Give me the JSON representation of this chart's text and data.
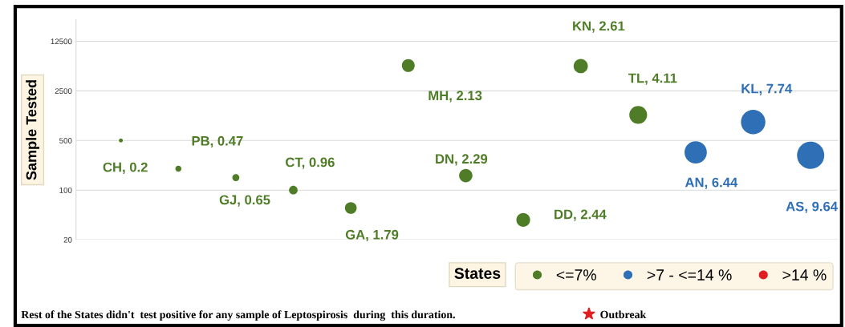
{
  "chart_data": {
    "type": "bubble",
    "xlabel": "States",
    "ylabel": "Sample Tested",
    "categories": [
      null,
      null,
      null,
      null,
      null,
      null,
      null,
      null,
      null,
      null,
      null,
      null,
      null
    ],
    "series": [
      {
        "name": "<=7%",
        "color": "#4f7d27",
        "values": [
          500,
          200,
          150,
          100,
          56,
          5700,
          160,
          38,
          5600,
          1150,
          null,
          null,
          null
        ],
        "sizes": [
          0.021,
          0.049,
          0.067,
          0.1,
          0.186,
          0.221,
          0.238,
          0.253,
          0.271,
          0.426,
          null,
          null,
          null
        ]
      },
      {
        "name": ">7 - <=14 %",
        "color": "#2f6fb6",
        "values": [
          null,
          null,
          null,
          null,
          null,
          null,
          null,
          null,
          null,
          null,
          340,
          910,
          310
        ],
        "sizes": [
          null,
          null,
          null,
          null,
          null,
          null,
          null,
          null,
          null,
          null,
          0.668,
          0.803,
          1
        ]
      },
      {
        "name": ">14 %",
        "color": "#e02020",
        "values": [
          null,
          null,
          null,
          null,
          null,
          null,
          null,
          null,
          null,
          null,
          null,
          null,
          null
        ],
        "sizes": [
          null,
          null,
          null,
          null,
          null,
          null,
          null,
          null,
          null,
          null,
          null,
          null,
          null
        ]
      }
    ],
    "log": true,
    "ylim": [
      20,
      25000
    ],
    "yticks": [
      20,
      100,
      500,
      2500,
      12500
    ],
    "grid": "y",
    "legend": "bottom right",
    "tick_labels": "y",
    "annotations": [
      "CH, 0.2",
      "PB, 0.47",
      "GJ, 0.65",
      "CT, 0.96",
      "GA, 1.79",
      "MH, 2.13",
      "DN, 2.29",
      "DD, 2.44",
      "KN, 2.61",
      "TL, 4.11",
      "AN, 6.44",
      "KL, 7.74",
      "AS, 9.64",
      "Rest of the States didn't  test positive for any sample of Leptospirosis  during  this duration.",
      "Outbreak"
    ]
  }
}
